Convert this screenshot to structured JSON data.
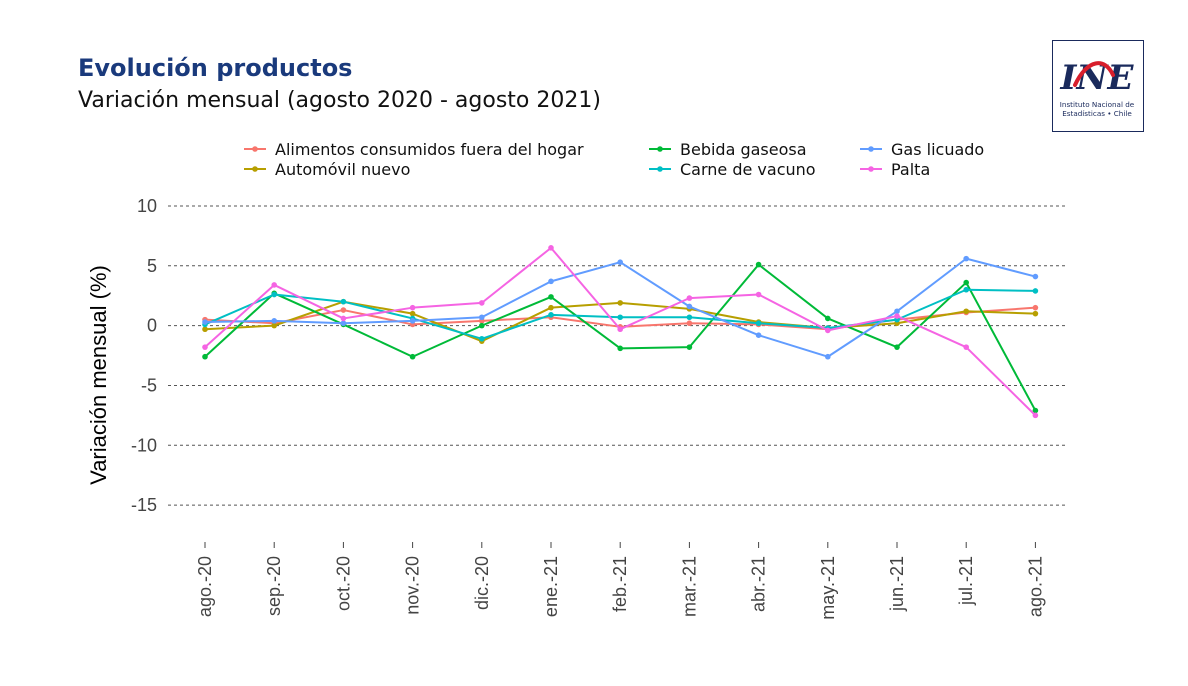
{
  "header": {
    "title": "Evolución productos",
    "subtitle": "Variación mensual (agosto 2020 - agosto 2021)"
  },
  "logo": {
    "mark": "INE",
    "line1": "Instituto Nacional de",
    "line2": "Estadísticas • Chile",
    "colors": {
      "ink": "#1a2a5c",
      "accent": "#d81e2c"
    }
  },
  "chart_data": {
    "type": "line",
    "title": "Evolución productos",
    "subtitle": "Variación mensual (agosto 2020 - agosto 2021)",
    "xlabel": "",
    "ylabel": "Variación mensual (%)",
    "ylim": [
      -17.5,
      10.5
    ],
    "yticks": [
      10,
      5,
      0,
      -5,
      -10,
      -15
    ],
    "ytick_labels": [
      "10",
      "5",
      "0",
      "-5",
      "-10",
      "-15"
    ],
    "grid": "horizontal dashed",
    "legend_position": "top",
    "categories": [
      "ago.-20",
      "sep.-20",
      "oct.-20",
      "nov.-20",
      "dic.-20",
      "ene.-21",
      "feb.-21",
      "mar.-21",
      "abr.-21",
      "may.-21",
      "jun.-21",
      "jul.-21",
      "ago.-21"
    ],
    "series": [
      {
        "name": "Alimentos consumidos fuera del hogar",
        "color": "#f8766d",
        "values": [
          0.5,
          0.2,
          1.3,
          0.1,
          0.4,
          0.7,
          -0.1,
          0.2,
          0.1,
          -0.3,
          0.5,
          1.1,
          1.5
        ]
      },
      {
        "name": "Automóvil nuevo",
        "color": "#b79f00",
        "values": [
          -0.3,
          0.0,
          2.0,
          1.0,
          -1.3,
          1.5,
          1.9,
          1.4,
          0.3,
          -0.2,
          0.2,
          1.2,
          1.0
        ]
      },
      {
        "name": "Bebida gaseosa",
        "color": "#00ba38",
        "values": [
          -2.6,
          2.7,
          0.1,
          -2.6,
          0.0,
          2.4,
          -1.9,
          -1.8,
          5.1,
          0.6,
          -1.8,
          3.6,
          -7.1
        ]
      },
      {
        "name": "Carne de vacuno",
        "color": "#00bfc4",
        "values": [
          0.1,
          2.6,
          2.0,
          0.6,
          -1.1,
          0.9,
          0.7,
          0.7,
          0.2,
          -0.2,
          0.5,
          3.0,
          2.9
        ]
      },
      {
        "name": "Gas licuado",
        "color": "#619cff",
        "values": [
          0.3,
          0.4,
          0.2,
          0.4,
          0.7,
          3.7,
          5.3,
          1.6,
          -0.8,
          -2.6,
          1.2,
          5.6,
          4.1
        ]
      },
      {
        "name": "Palta",
        "color": "#f564e3",
        "values": [
          -1.8,
          3.4,
          0.6,
          1.5,
          1.9,
          6.5,
          -0.3,
          2.3,
          2.6,
          -0.4,
          0.8,
          -1.8,
          -7.5
        ]
      }
    ]
  }
}
